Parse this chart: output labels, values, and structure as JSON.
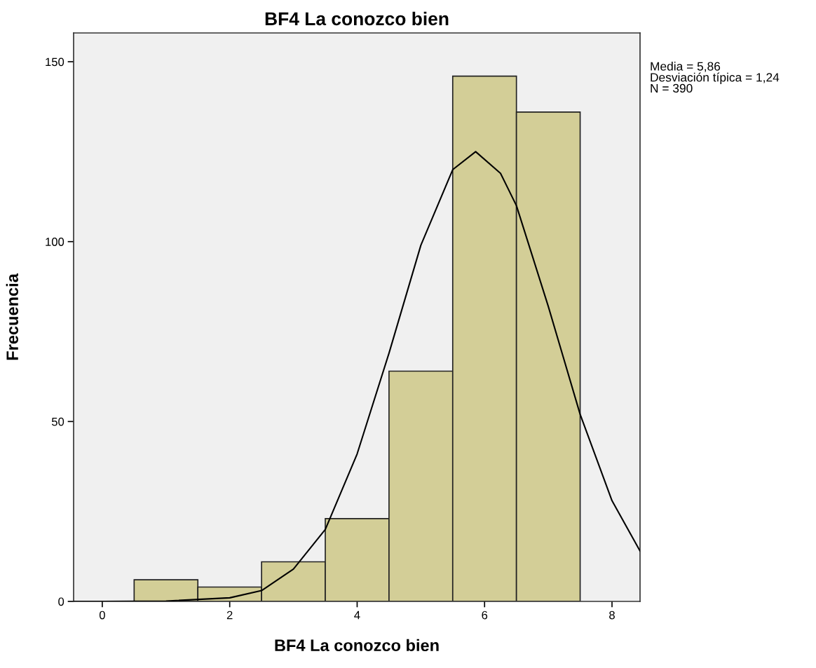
{
  "chart_data": {
    "type": "histogram",
    "title": "BF4 La conozco bien",
    "xlabel": "BF4 La conozco bien",
    "ylabel": "Frecuencia",
    "bins": [
      0.5,
      1.5,
      2.5,
      3.5,
      4.5,
      5.5,
      6.5,
      7.5
    ],
    "values": [
      6,
      4,
      11,
      23,
      64,
      146,
      136
    ],
    "color": "#d3ce97",
    "series": [
      {
        "type": "line",
        "color": "#000000",
        "x": [
          -0.45,
          0,
          1,
          2,
          2.5,
          3,
          3.5,
          4,
          4.5,
          5,
          5.5,
          5.86,
          6.25,
          6.5,
          7,
          7.5,
          8,
          8.44
        ],
        "values": [
          0,
          0,
          0.1,
          1,
          3,
          9,
          20,
          41,
          69,
          99,
          120,
          125,
          119,
          110,
          82,
          52,
          28,
          14
        ]
      }
    ],
    "xlim": [
      -0.45,
      8.44
    ],
    "ylim": [
      0,
      158
    ],
    "xticks": [
      0,
      2,
      4,
      6,
      8
    ],
    "yticks": [
      0,
      50,
      100,
      150
    ],
    "grid": false,
    "annotations": [
      "Media = 5,86\nDesviación típica = 1,24\nN = 390"
    ]
  }
}
